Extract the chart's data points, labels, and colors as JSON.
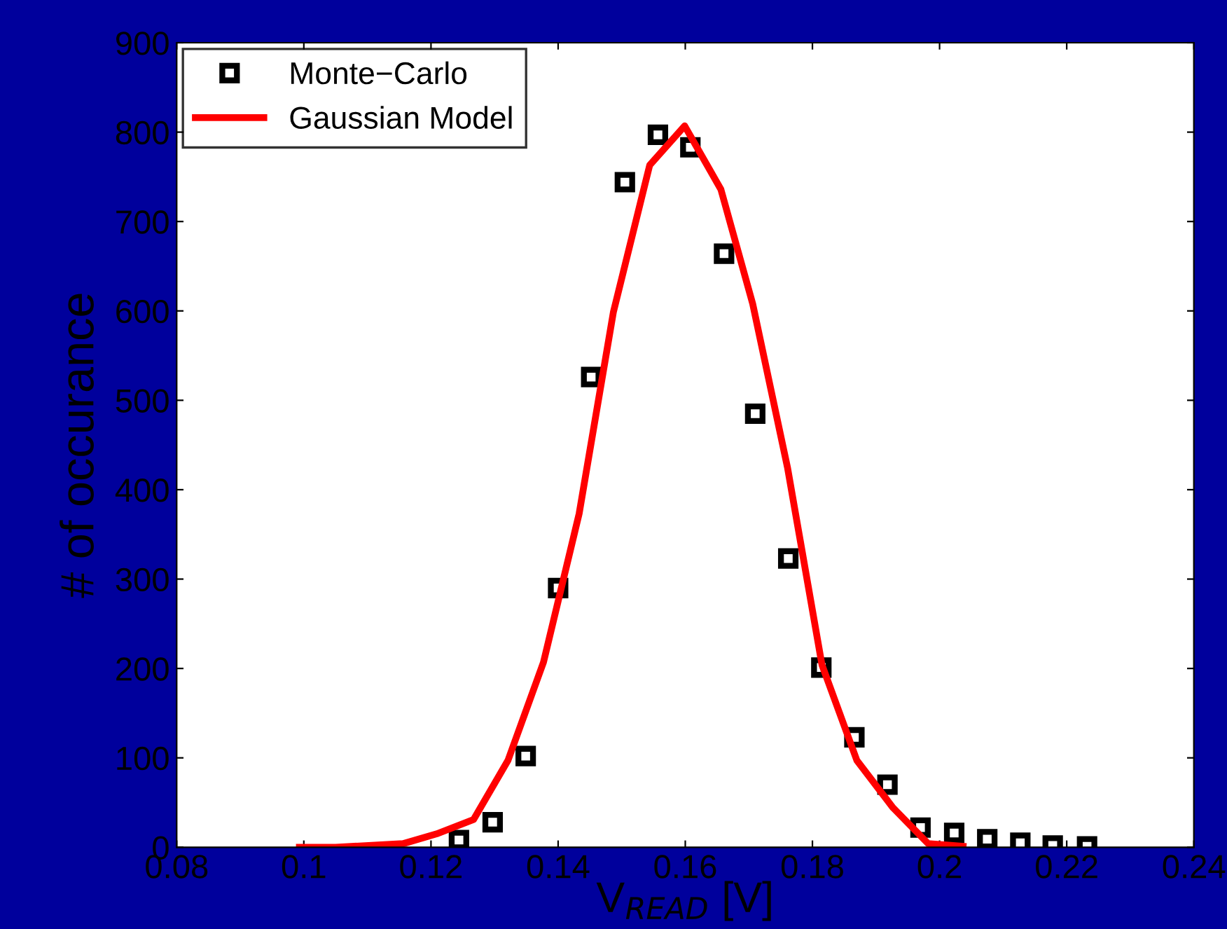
{
  "chart_data": {
    "type": "scatter",
    "xlabel": "V$_{READ}$ [V]",
    "ylabel": "# of occurance",
    "xlim": [
      0.08,
      0.24
    ],
    "xticks": [
      0.08,
      0.1,
      0.12,
      0.14,
      0.16,
      0.18,
      0.2,
      0.22,
      0.24
    ],
    "ylim": [
      0,
      900
    ],
    "yticks": [
      0,
      100,
      200,
      300,
      400,
      500,
      600,
      700,
      800,
      900
    ],
    "grid": false,
    "legend": "top left",
    "series": [
      {
        "name": "Monte−Carlo",
        "marker": "square",
        "color": "#000000",
        "x": [
          0.1244,
          0.1297,
          0.1349,
          0.14,
          0.1452,
          0.1505,
          0.1557,
          0.1608,
          0.1661,
          0.171,
          0.1762,
          0.1814,
          0.1866,
          0.1918,
          0.197,
          0.2023,
          0.2075,
          0.2127,
          0.2178,
          0.2232
        ],
        "values": [
          8,
          28,
          102,
          290,
          526,
          744,
          797,
          783,
          664,
          485,
          323,
          201,
          123,
          70,
          22,
          16,
          9,
          5,
          2,
          1
        ]
      },
      {
        "name": "Gaussian Model",
        "type": "line",
        "marker": "none",
        "line_style": "solid",
        "color": "#ff0000",
        "x": [
          0.0993,
          0.105,
          0.1156,
          0.1209,
          0.1267,
          0.1321,
          0.1377,
          0.1433,
          0.1487,
          0.1544,
          0.1599,
          0.1656,
          0.1706,
          0.1761,
          0.1815,
          0.187,
          0.1927,
          0.1982,
          0.2037
        ],
        "values": [
          0,
          0,
          4,
          15,
          31,
          97,
          207,
          373,
          599,
          763,
          807,
          736,
          608,
          424,
          204,
          97,
          44,
          4,
          1
        ]
      }
    ]
  }
}
